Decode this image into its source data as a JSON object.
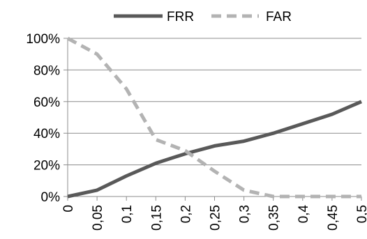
{
  "chart_data": {
    "type": "line",
    "title": "",
    "xlabel": "",
    "ylabel": "",
    "x": [
      "0",
      "0,05",
      "0,1",
      "0,15",
      "0,2",
      "0,25",
      "0,3",
      "0,35",
      "0,4",
      "0,45",
      "0,5"
    ],
    "y_ticks": [
      "0%",
      "20%",
      "40%",
      "60%",
      "80%",
      "100%"
    ],
    "ylim": [
      0,
      100
    ],
    "grid": true,
    "legend_position": "top",
    "series": [
      {
        "name": "FRR",
        "color": "#595959",
        "dash": "solid",
        "values": [
          0,
          4,
          13,
          21,
          27,
          32,
          35,
          40,
          46,
          52,
          60
        ]
      },
      {
        "name": "FAR",
        "color": "#b3b3b3",
        "dash": "dashed",
        "values": [
          100,
          90,
          68,
          36,
          29,
          16,
          4,
          0,
          0,
          0,
          0
        ]
      }
    ]
  }
}
